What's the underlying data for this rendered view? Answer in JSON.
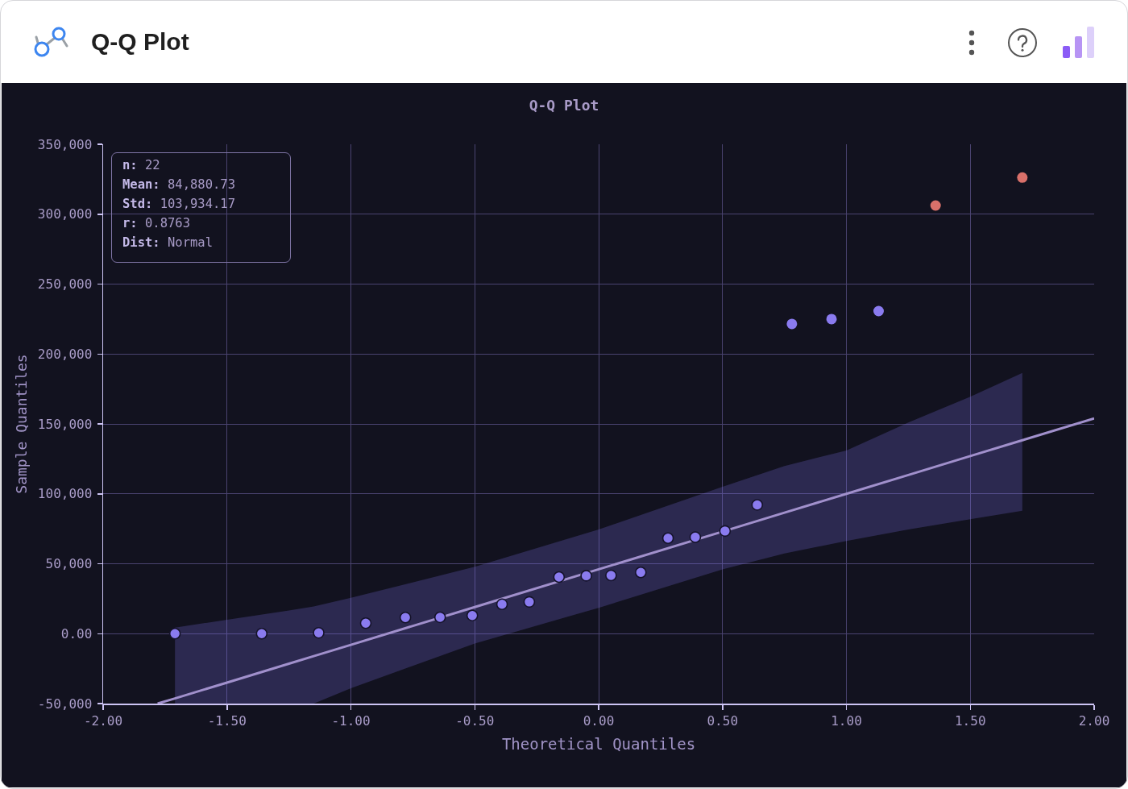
{
  "chart_data": {
    "type": "scatter",
    "title": "Q-Q Plot",
    "xlabel": "Theoretical Quantiles",
    "ylabel": "Sample Quantiles",
    "annotations": [
      "n: 22",
      "Mean: 84,880.73",
      "Std: 103,934.17",
      "r: 0.8763",
      "Dist: Normal"
    ],
    "series": [
      {
        "type": "line",
        "color": "#a190cc",
        "marker": "none",
        "x": [
          -1.78,
          -1.71,
          -1.5,
          -1.25,
          -1.15,
          -1.0,
          -0.5,
          0,
          0.5,
          0.75,
          1.0,
          1.25,
          1.5,
          1.71,
          2
        ],
        "values": [
          -50000,
          -46300,
          -35000,
          -21500,
          -16100,
          -8000,
          19000,
          46000,
          73000,
          86500,
          100000,
          113500,
          127000,
          138300,
          154000
        ],
        "upper": [
          null,
          4300,
          10000,
          16500,
          19500,
          25600,
          47800,
          74500,
          105000,
          119900,
          131000,
          151000,
          169500,
          186500,
          null
        ],
        "lower": [
          null,
          -50000,
          -50000,
          -50000,
          -50000,
          -39000,
          -7000,
          18500,
          46000,
          57400,
          66300,
          74500,
          81800,
          87900,
          null
        ]
      },
      {
        "color": "#8a7bef",
        "x": [
          -1.71,
          -1.36,
          -1.13,
          -0.94,
          -0.78,
          -0.64,
          -0.51,
          -0.39,
          -0.28,
          -0.16,
          -0.05,
          0.05,
          0.17,
          0.28,
          0.39,
          0.51,
          0.64,
          0.78,
          0.94,
          1.13
        ],
        "values": [
          0,
          0,
          600,
          7500,
          11500,
          11700,
          13000,
          21000,
          22700,
          40500,
          41400,
          41600,
          43800,
          68300,
          69000,
          73400,
          92100,
          221500,
          225000,
          230700
        ]
      },
      {
        "color": "#d9706a",
        "x": [
          1.36,
          1.71
        ],
        "values": [
          306200,
          326200
        ]
      }
    ],
    "xlim": [
      -2,
      2
    ],
    "xticks": [
      {
        "value": -2,
        "label": "-2.00"
      },
      {
        "value": -1.5,
        "label": "-1.50"
      },
      {
        "value": -1,
        "label": "-1.00"
      },
      {
        "value": -0.5,
        "label": "-0.50"
      },
      {
        "value": 0,
        "label": "0.00"
      },
      {
        "value": 0.5,
        "label": "0.50"
      },
      {
        "value": 1,
        "label": "1.00"
      },
      {
        "value": 1.5,
        "label": "1.50"
      },
      {
        "value": 2,
        "label": "2.00"
      }
    ],
    "ylim": [
      -50000,
      350000
    ],
    "yticks": [
      {
        "value": -50000,
        "label": "-50,000"
      },
      {
        "value": 0,
        "label": "0.00"
      },
      {
        "value": 50000,
        "label": "50,000"
      },
      {
        "value": 100000,
        "label": "100,000"
      },
      {
        "value": 150000,
        "label": "150,000"
      },
      {
        "value": 200000,
        "label": "200,000"
      },
      {
        "value": 250000,
        "label": "250,000"
      },
      {
        "value": 300000,
        "label": "300,000"
      },
      {
        "value": 350000,
        "label": "350,000"
      }
    ],
    "grid": true,
    "marker": "circle",
    "line_style": "solid"
  }
}
